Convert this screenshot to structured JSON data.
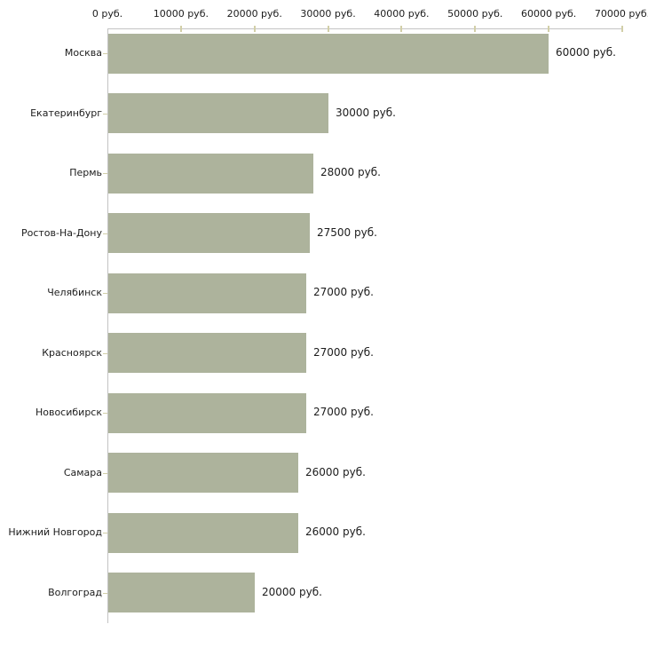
{
  "chart_data": {
    "type": "bar",
    "orientation": "horizontal",
    "title": "",
    "unit": "руб.",
    "categories": [
      "Москва",
      "Екатеринбург",
      "Пермь",
      "Ростов-На-Дону",
      "Челябинск",
      "Красноярск",
      "Новосибирск",
      "Самара",
      "Нижний Новгород",
      "Волгоград"
    ],
    "values": [
      60000,
      30000,
      28000,
      27500,
      27000,
      27000,
      27000,
      26000,
      26000,
      20000
    ],
    "value_labels": [
      "60000 руб.",
      "30000 руб.",
      "28000 руб.",
      "27500 руб.",
      "27000 руб.",
      "27000 руб.",
      "27000 руб.",
      "26000 руб.",
      "26000 руб.",
      "20000 руб."
    ],
    "x_ticks": [
      0,
      10000,
      20000,
      30000,
      40000,
      50000,
      60000,
      70000
    ],
    "x_tick_labels": [
      "0 руб.",
      "10000 руб.",
      "20000 руб.",
      "30000 руб.",
      "40000 руб.",
      "50000 руб.",
      "60000 руб.",
      "70000 руб."
    ],
    "xlim": [
      0,
      70000
    ],
    "grid": false,
    "legend": false,
    "axis_position": "top"
  },
  "colors": {
    "bar": "#adb39c",
    "axis": "#c3c3c3",
    "tick": "#d2cfa8",
    "text": "#1c1c1c",
    "background": "#ffffff"
  }
}
